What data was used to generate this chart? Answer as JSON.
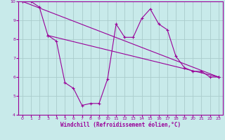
{
  "title": "",
  "xlabel": "Windchill (Refroidissement éolien,°C)",
  "ylabel": "",
  "xlim": [
    -0.5,
    23.5
  ],
  "ylim": [
    4,
    10
  ],
  "yticks": [
    4,
    5,
    6,
    7,
    8,
    9,
    10
  ],
  "xticks": [
    0,
    1,
    2,
    3,
    4,
    5,
    6,
    7,
    8,
    9,
    10,
    11,
    12,
    13,
    14,
    15,
    16,
    17,
    18,
    19,
    20,
    21,
    22,
    23
  ],
  "background_color": "#c8eaea",
  "line_color": "#990099",
  "grid_color": "#aacccc",
  "line1_x": [
    0,
    1,
    2,
    3,
    4,
    5,
    6,
    7,
    8,
    9,
    10,
    11,
    12,
    13,
    14,
    15,
    16,
    17,
    18,
    19,
    20,
    21,
    22,
    23
  ],
  "line1_y": [
    10.0,
    10.0,
    9.7,
    8.2,
    7.9,
    5.7,
    5.4,
    4.5,
    4.6,
    4.6,
    5.9,
    8.8,
    8.1,
    8.1,
    9.1,
    9.6,
    8.8,
    8.5,
    7.1,
    6.5,
    6.3,
    6.3,
    6.0,
    6.0
  ],
  "line2_x": [
    0,
    23
  ],
  "line2_y": [
    10.0,
    6.0
  ],
  "line3_x": [
    3,
    23
  ],
  "line3_y": [
    8.2,
    6.0
  ]
}
